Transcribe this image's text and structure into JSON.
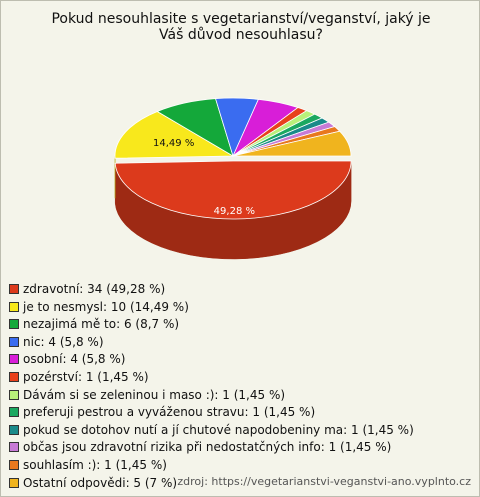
{
  "chart_data": {
    "type": "pie",
    "title": "Pokud nesouhlasite s vegetarianství/veganství, jaký je Váš důvod nesouhlasu?",
    "categories": [
      "zdravotní",
      "je to nesmysl",
      "nezajimá mě to",
      "nic",
      "osobní",
      "pozérství",
      "Dávám si se zeleninou i maso :)",
      "preferuji pestrou a vyváženou stravu",
      "pokud se dotohov nutí a jí chutové napodobeniny ma",
      "občas jsou zdravotní rizika při nedostatčných info",
      "souhlasím :)",
      "Ostatní odpovědi"
    ],
    "legend_labels": [
      "zdravotní: 34 (49,28 %)",
      "je to nesmysl: 10 (14,49 %)",
      "nezajimá mě to: 6 (8,7 %)",
      "nic: 4 (5,8 %)",
      "osobní: 4 (5,8 %)",
      "pozérství: 1 (1,45 %)",
      "Dávám si se zeleninou i maso :): 1 (1,45 %)",
      "preferuji pestrou a vyváženou stravu: 1 (1,45 %)",
      "pokud se dotohov nutí a jí chutové napodobeniny ma: 1 (1,45 %)",
      "občas jsou zdravotní rizika při nedostatčných info: 1 (1,45 %)",
      "souhlasím :): 1 (1,45 %)",
      "Ostatní odpovědi: 5 (7 %)"
    ],
    "values": [
      49.28,
      14.49,
      8.7,
      5.8,
      5.8,
      1.45,
      1.45,
      1.45,
      1.45,
      1.45,
      1.45,
      7
    ],
    "value_labels": [
      "49,28 %",
      "14,49 %",
      null,
      null,
      null,
      null,
      null,
      null,
      null,
      null,
      null,
      null
    ],
    "colors": [
      "#dc3a1c",
      "#f8e81c",
      "#14a83a",
      "#3a6cf0",
      "#d81ed8",
      "#e8401c",
      "#b8f07a",
      "#1aa860",
      "#1a8a8a",
      "#c87ad6",
      "#e8781e",
      "#f0b41e"
    ],
    "source": "zdroj: https://vegetarianstvi-veganstvi-ano.vyplnto.cz"
  }
}
